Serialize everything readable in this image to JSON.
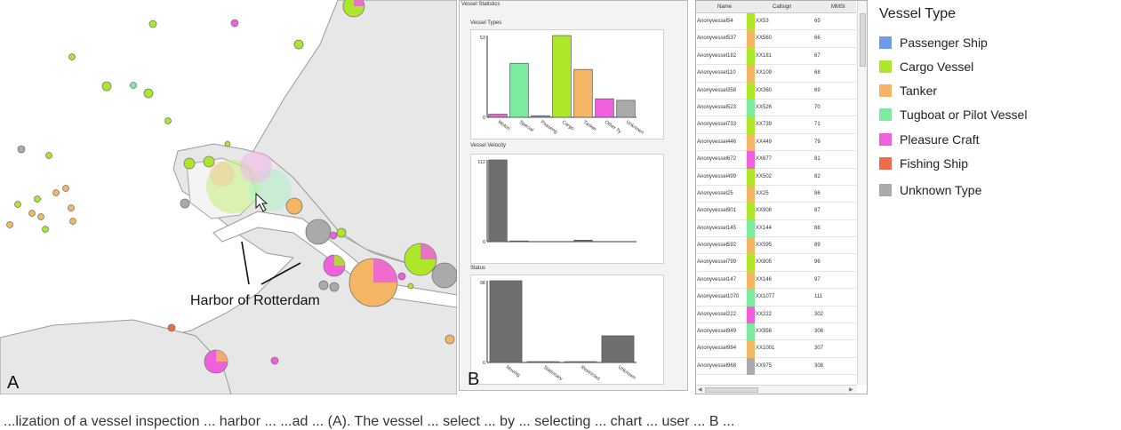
{
  "map": {
    "panel_letter": "A",
    "annotation_label": "Harbor of Rotterdam"
  },
  "stats": {
    "panel_letter": "B",
    "window_title": "Vessel Statistics",
    "colors": {
      "passenger": "#6f9bea",
      "cargo": "#aee62a",
      "tanker": "#f4b565",
      "tugboat": "#7ceb9e",
      "pleasure": "#ef5fde",
      "fishing": "#ef6a4a",
      "unknown": "#aaaaaa",
      "dark_bar": "#6f6f6f"
    }
  },
  "chart_data": [
    {
      "type": "bar",
      "title": "Vessel Types",
      "y_tick_labels": [
        "53",
        "0"
      ],
      "ylim": [
        0,
        53
      ],
      "categories": [
        "Motori",
        "Special",
        "Passeng",
        "Cargo",
        "Tanker",
        "Other Ty",
        "Unknown"
      ],
      "values": [
        2,
        35,
        1,
        53,
        31,
        12,
        11
      ],
      "colors": [
        "#ef5fde",
        "#7ceb9e",
        "#6f9bea",
        "#aee62a",
        "#f4b565",
        "#ef5fde",
        "#aaaaaa"
      ]
    },
    {
      "type": "bar",
      "title": "Vessel Velocity",
      "y_tick_labels": [
        "112",
        "0"
      ],
      "ylim": [
        0,
        112
      ],
      "categories": [
        "",
        "",
        "",
        "",
        "",
        "",
        ""
      ],
      "values": [
        112,
        1,
        0,
        0,
        2,
        0,
        0
      ],
      "colors": [
        "#6f6f6f",
        "#6f6f6f",
        "#6f6f6f",
        "#6f6f6f",
        "#6f6f6f",
        "#6f6f6f",
        "#6f6f6f"
      ]
    },
    {
      "type": "bar",
      "title": "Status",
      "y_tick_labels": [
        "98",
        "0"
      ],
      "ylim": [
        0,
        98
      ],
      "categories": [
        "Moving",
        "Stationary",
        "Restricted",
        "Unknown"
      ],
      "values": [
        98,
        1,
        1,
        32
      ],
      "colors": [
        "#6f6f6f",
        "#6f6f6f",
        "#6f6f6f",
        "#6f6f6f"
      ]
    }
  ],
  "table": {
    "headers": {
      "name": "Name",
      "callsign": "Callsign",
      "mmsi": "MMSI"
    },
    "rows": [
      {
        "name": "Anonyvessel54",
        "callsign": "XX53",
        "mmsi": "65",
        "color": "#aee62a"
      },
      {
        "name": "Anonyvessel537",
        "callsign": "XX560",
        "mmsi": "66",
        "color": "#f4b565"
      },
      {
        "name": "Anonyvessel182",
        "callsign": "XX181",
        "mmsi": "67",
        "color": "#aee62a"
      },
      {
        "name": "Anonyvessel110",
        "callsign": "XX109",
        "mmsi": "68",
        "color": "#f4b565"
      },
      {
        "name": "Anonyvessel358",
        "callsign": "XX360",
        "mmsi": "69",
        "color": "#aee62a"
      },
      {
        "name": "Anonyvessel523",
        "callsign": "XX526",
        "mmsi": "70",
        "color": "#7ceb9e"
      },
      {
        "name": "Anonyvessel733",
        "callsign": "XX739",
        "mmsi": "71",
        "color": "#aee62a"
      },
      {
        "name": "Anonyvessel446",
        "callsign": "XX449",
        "mmsi": "79",
        "color": "#f4b565"
      },
      {
        "name": "Anonyvessel672",
        "callsign": "XX677",
        "mmsi": "81",
        "color": "#ef5fde"
      },
      {
        "name": "Anonyvessel499",
        "callsign": "XX502",
        "mmsi": "82",
        "color": "#aee62a"
      },
      {
        "name": "Anonyvessel25",
        "callsign": "XX25",
        "mmsi": "86",
        "color": "#f4b565"
      },
      {
        "name": "Anonyvessel901",
        "callsign": "XX908",
        "mmsi": "87",
        "color": "#aee62a"
      },
      {
        "name": "Anonyvessel145",
        "callsign": "XX144",
        "mmsi": "88",
        "color": "#7ceb9e"
      },
      {
        "name": "Anonyvessel592",
        "callsign": "XX595",
        "mmsi": "89",
        "color": "#f4b565"
      },
      {
        "name": "Anonyvessel799",
        "callsign": "XX805",
        "mmsi": "96",
        "color": "#aee62a"
      },
      {
        "name": "Anonyvessel147",
        "callsign": "XX146",
        "mmsi": "97",
        "color": "#f4b565"
      },
      {
        "name": "Anonyvessel1070",
        "callsign": "XX1077",
        "mmsi": "111",
        "color": "#7ceb9e"
      },
      {
        "name": "Anonyvessel222",
        "callsign": "XX222",
        "mmsi": "302",
        "color": "#ef5fde"
      },
      {
        "name": "Anonyvessel949",
        "callsign": "XX956",
        "mmsi": "306",
        "color": "#7ceb9e"
      },
      {
        "name": "Anonyvessel994",
        "callsign": "XX1001",
        "mmsi": "307",
        "color": "#f4b565"
      },
      {
        "name": "Anonyvessel968",
        "callsign": "XX975",
        "mmsi": "308",
        "color": "#aaaaaa"
      }
    ]
  },
  "legend": {
    "title": "Vessel Type",
    "items": [
      {
        "label": "Passenger Ship",
        "color": "#6f9bea"
      },
      {
        "label": "Cargo Vessel",
        "color": "#aee62a"
      },
      {
        "label": "Tanker",
        "color": "#f4b565"
      },
      {
        "label": "Tugboat or Pilot Vessel",
        "color": "#7ceb9e"
      },
      {
        "label": "Pleasure Craft",
        "color": "#ef5fde"
      },
      {
        "label": "Fishing Ship",
        "color": "#ef6a4a"
      },
      {
        "label": "Unknown Type",
        "color": "#aaaaaa"
      }
    ]
  },
  "caption": {
    "text": "...lization of a vessel inspection ... harbor ... ...ad ... (A). The vessel ... select ... by ... selecting ... chart ... user ... B ..."
  }
}
